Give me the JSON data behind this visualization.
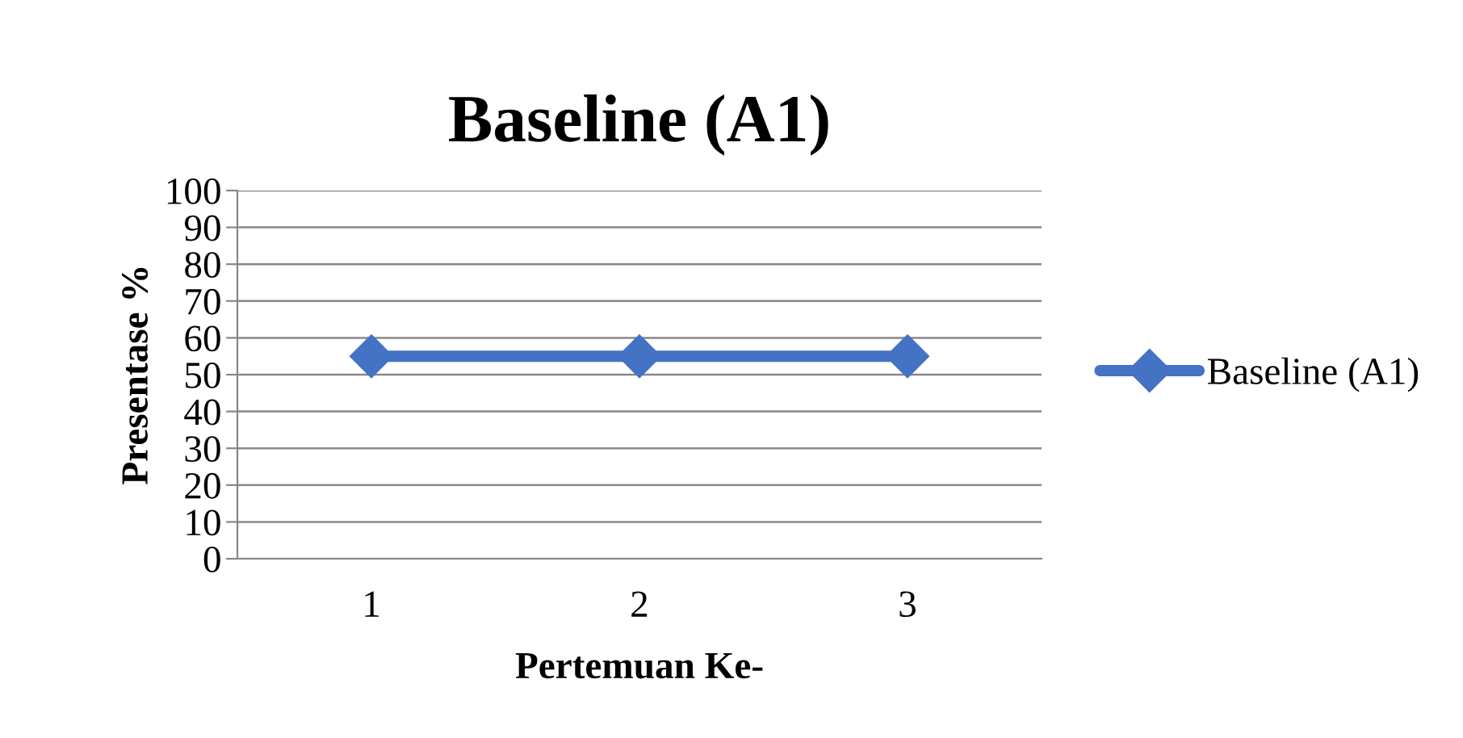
{
  "chart_data": {
    "type": "line",
    "title": "Baseline (A1)",
    "xlabel": "Pertemuan Ke-",
    "ylabel": "Presentase %",
    "categories": [
      "1",
      "2",
      "3"
    ],
    "series": [
      {
        "name": "Baseline (A1)",
        "color": "#4472c4",
        "values": [
          55,
          55,
          55
        ]
      }
    ],
    "ylim": [
      0,
      100
    ],
    "yticks": [
      0,
      10,
      20,
      30,
      40,
      50,
      60,
      70,
      80,
      90,
      100
    ],
    "grid": "y",
    "legend": "right",
    "marker": "diamond",
    "line_style": "solid"
  }
}
